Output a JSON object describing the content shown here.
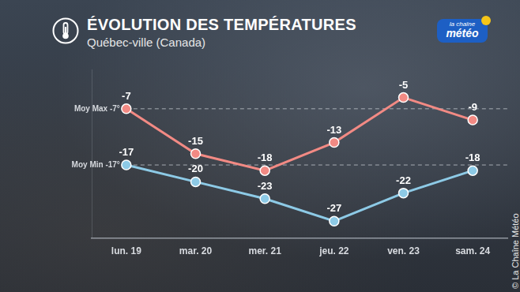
{
  "chart_data": {
    "type": "line",
    "title": "ÉVOLUTION DES TEMPÉRATURES",
    "subtitle": "Québec-ville (Canada)",
    "logo": [
      "la chaîne",
      "météo"
    ],
    "credit": "© La Chaîne Météo",
    "categories": [
      "lun. 19",
      "mar. 20",
      "mer. 21",
      "jeu. 22",
      "ven. 23",
      "sam. 24"
    ],
    "series": [
      {
        "color": "#f28a84",
        "marker": "circle",
        "line_style": "solid",
        "values": [
          -7,
          -15,
          -18,
          -13,
          -5,
          -9
        ]
      },
      {
        "color": "#8dcae6",
        "marker": "circle",
        "line_style": "solid",
        "values": [
          -17,
          -20,
          -23,
          -27,
          -22,
          -18
        ]
      }
    ],
    "annotations": [
      {
        "label": "Moy Max -7°",
        "value": -7,
        "line_style": "dashed"
      },
      {
        "label": "Moy Min -17°",
        "value": -17,
        "line_style": "dashed"
      }
    ],
    "ylim": [
      -30,
      0
    ],
    "grid": false,
    "legend": "none",
    "data_labels": true,
    "tick_labels": "x"
  }
}
